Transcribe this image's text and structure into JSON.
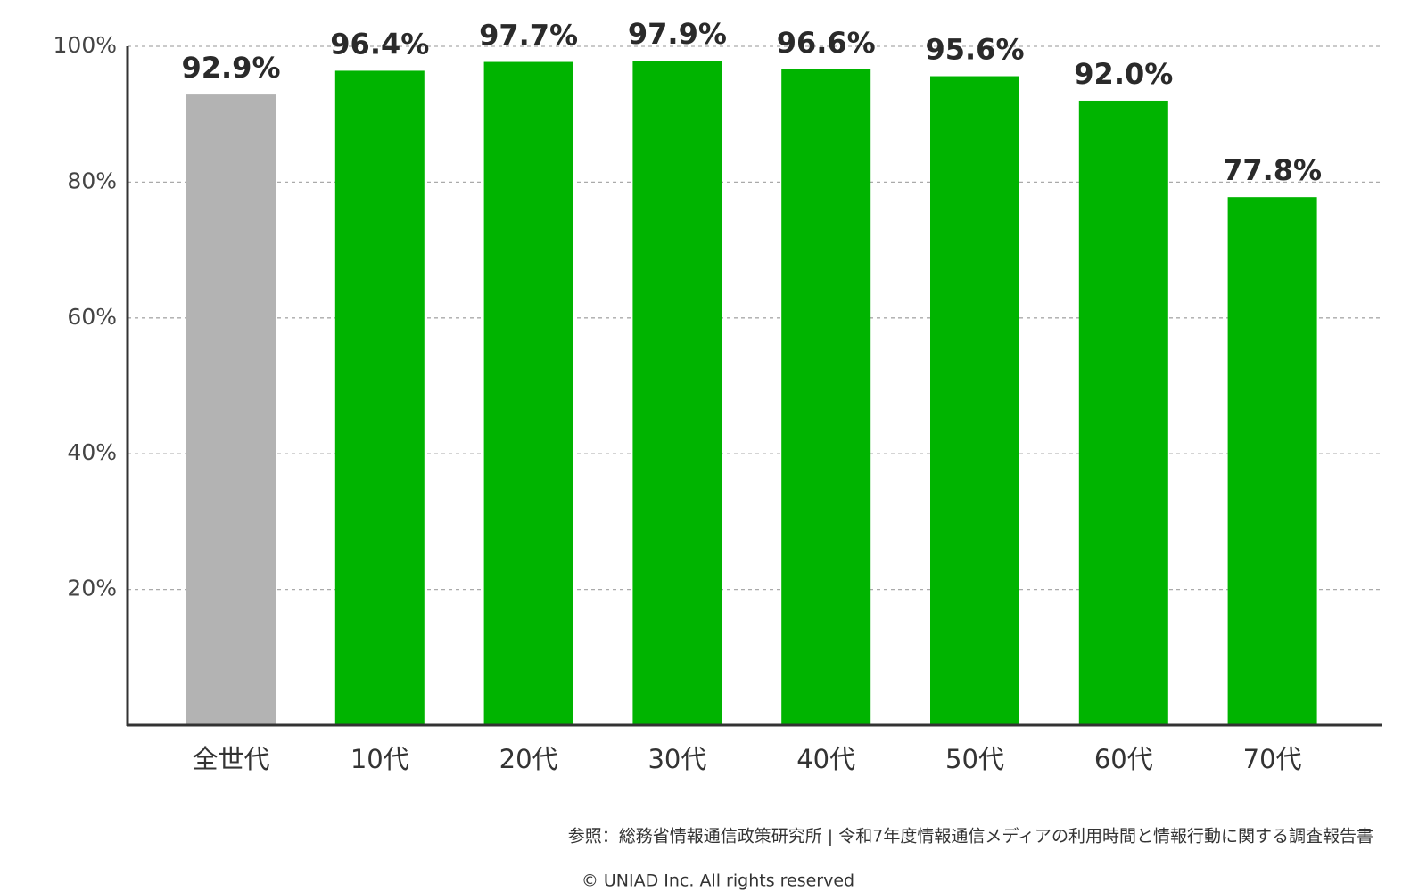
{
  "chart_data": {
    "type": "bar",
    "categories": [
      "全世代",
      "10代",
      "20代",
      "30代",
      "40代",
      "50代",
      "60代",
      "70代"
    ],
    "values": [
      92.9,
      96.4,
      97.7,
      97.9,
      96.6,
      95.6,
      92.0,
      77.8
    ],
    "value_labels": [
      "92.9%",
      "96.4%",
      "97.7%",
      "97.9%",
      "96.6%",
      "95.6%",
      "92.0%",
      "77.8%"
    ],
    "colors": [
      "#b3b3b3",
      "#00b400",
      "#00b400",
      "#00b400",
      "#00b400",
      "#00b400",
      "#00b400",
      "#00b400"
    ],
    "ylim": [
      0,
      100
    ],
    "yticks": [
      {
        "value": 20,
        "label": "20%"
      },
      {
        "value": 40,
        "label": "40%"
      },
      {
        "value": 60,
        "label": "60%"
      },
      {
        "value": 80,
        "label": "80%"
      },
      {
        "value": 100,
        "label": "100%"
      }
    ],
    "grid": true,
    "source": "参照：総務省情報通信政策研究所 | 令和7年度情報通信メディアの利用時間と情報行動に関する調査報告書",
    "copyright": "© UNIAD Inc. All rights reserved"
  }
}
